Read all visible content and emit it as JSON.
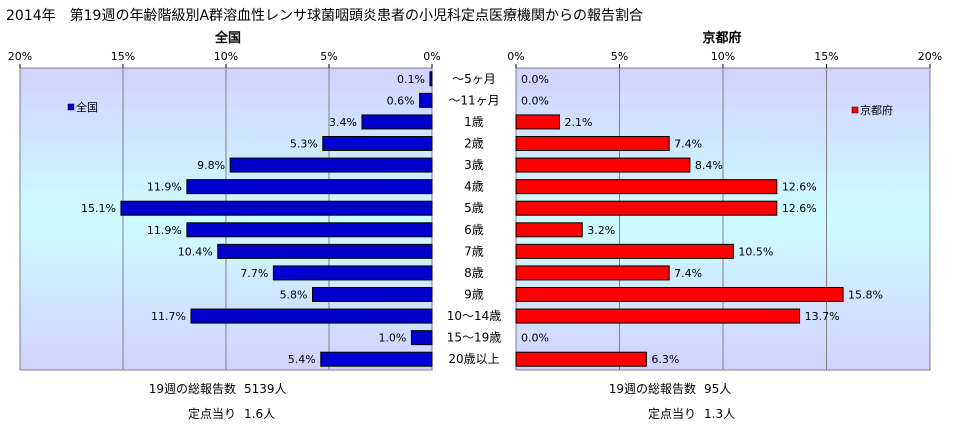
{
  "page_title": "2014年　第19週の年齢階級別A群溶血性レンサ球菌咽頭炎患者の小児科定点医療機関からの報告割合",
  "chart_data": [
    {
      "type": "bar",
      "orientation": "horizontal",
      "title": "全国",
      "x_direction": "reversed",
      "xlim": [
        0,
        20
      ],
      "ticks": [
        "20%",
        "15%",
        "10%",
        "5%",
        "0%"
      ],
      "tick_values": [
        20,
        15,
        10,
        5,
        0
      ],
      "categories": [
        "～5ヶ月",
        "～11ヶ月",
        "1歳",
        "2歳",
        "3歳",
        "4歳",
        "5歳",
        "6歳",
        "7歳",
        "8歳",
        "9歳",
        "10～14歳",
        "15～19歳",
        "20歳以上"
      ],
      "series": [
        {
          "name": "全国",
          "color": "#0000cc",
          "values": [
            0.1,
            0.6,
            3.4,
            5.3,
            9.8,
            11.9,
            15.1,
            11.9,
            10.4,
            7.7,
            5.8,
            11.7,
            1.0,
            5.4
          ],
          "labels": [
            "0.1%",
            "0.6%",
            "3.4%",
            "5.3%",
            "9.8%",
            "11.9%",
            "15.1%",
            "11.9%",
            "10.4%",
            "7.7%",
            "5.8%",
            "11.7%",
            "1.0%",
            "5.4%"
          ]
        }
      ],
      "legend": "top-left",
      "grid": true
    },
    {
      "type": "bar",
      "orientation": "horizontal",
      "title": "京都府",
      "xlim": [
        0,
        20
      ],
      "ticks": [
        "0%",
        "5%",
        "10%",
        "15%",
        "20%"
      ],
      "tick_values": [
        0,
        5,
        10,
        15,
        20
      ],
      "categories": [
        "～5ヶ月",
        "～11ヶ月",
        "1歳",
        "2歳",
        "3歳",
        "4歳",
        "5歳",
        "6歳",
        "7歳",
        "8歳",
        "9歳",
        "10～14歳",
        "15～19歳",
        "20歳以上"
      ],
      "series": [
        {
          "name": "京都府",
          "color": "#ff0000",
          "values": [
            0.0,
            0.0,
            2.1,
            7.4,
            8.4,
            12.6,
            12.6,
            3.2,
            10.5,
            7.4,
            15.8,
            13.7,
            0.0,
            6.3
          ],
          "labels": [
            "0.0%",
            "0.0%",
            "2.1%",
            "7.4%",
            "8.4%",
            "12.6%",
            "12.6%",
            "3.2%",
            "10.5%",
            "7.4%",
            "15.8%",
            "13.7%",
            "0.0%",
            "6.3%"
          ]
        }
      ],
      "legend": "top-right",
      "grid": true
    }
  ],
  "summary": {
    "national": {
      "total_label": "19週の総報告数",
      "total_value": "5139人",
      "per_label": "定点当り",
      "per_value": "1.6人"
    },
    "kyoto": {
      "total_label": "19週の総報告数",
      "total_value": "95人",
      "per_label": "定点当り",
      "per_value": "1.3人"
    }
  }
}
